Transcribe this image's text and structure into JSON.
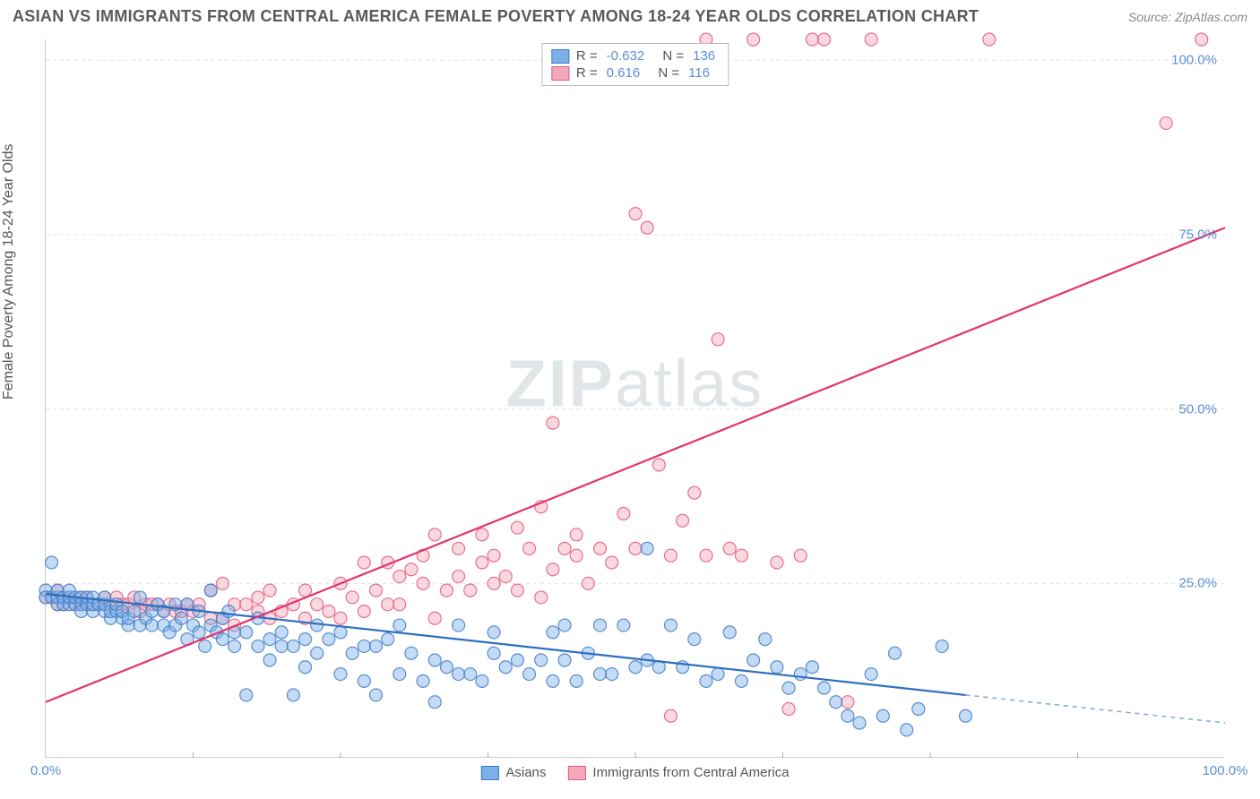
{
  "title": "ASIAN VS IMMIGRANTS FROM CENTRAL AMERICA FEMALE POVERTY AMONG 18-24 YEAR OLDS CORRELATION CHART",
  "source": "Source: ZipAtlas.com",
  "y_axis_label": "Female Poverty Among 18-24 Year Olds",
  "watermark": "ZIPatlas",
  "chart": {
    "type": "scatter",
    "background_color": "#ffffff",
    "grid_color": "#e3e3e3",
    "axis_color": "#cccccc",
    "xlim": [
      0,
      100
    ],
    "ylim": [
      0,
      103
    ],
    "y_ticks": [
      25,
      50,
      75,
      100
    ],
    "y_tick_labels": [
      "25.0%",
      "50.0%",
      "75.0%",
      "100.0%"
    ],
    "x_ticks": [
      0,
      100
    ],
    "x_tick_labels": [
      "0.0%",
      "100.0%"
    ],
    "x_minor_ticks": [
      12.5,
      25,
      37.5,
      50,
      62.5,
      75,
      87.5
    ],
    "marker_radius": 7,
    "marker_opacity": 0.45,
    "marker_stroke_opacity": 0.85,
    "title_fontsize": 18,
    "label_fontsize": 16,
    "tick_fontsize": 15,
    "tick_color": "#5a8fd6"
  },
  "series": [
    {
      "name": "Asians",
      "fill": "#7db0e8",
      "stroke": "#3f7cc4",
      "R": "-0.632",
      "N": "136",
      "trend": {
        "x1": 0,
        "y1": 23.5,
        "x2": 78,
        "y2": 9.0,
        "dash_x2": 100,
        "dash_y2": 5.0,
        "color": "#2d6fbf",
        "width": 2.2
      },
      "points": [
        [
          0,
          24
        ],
        [
          0,
          23
        ],
        [
          0.5,
          23
        ],
        [
          0.5,
          28
        ],
        [
          1,
          22
        ],
        [
          1,
          23
        ],
        [
          1,
          24
        ],
        [
          1.5,
          22
        ],
        [
          1.5,
          23
        ],
        [
          2,
          22
        ],
        [
          2,
          23
        ],
        [
          2,
          24
        ],
        [
          2.5,
          22
        ],
        [
          2.5,
          23
        ],
        [
          3,
          22
        ],
        [
          3,
          21
        ],
        [
          3,
          23
        ],
        [
          3.5,
          22
        ],
        [
          3.5,
          23
        ],
        [
          4,
          21
        ],
        [
          4,
          22
        ],
        [
          4,
          23
        ],
        [
          4.5,
          22
        ],
        [
          5,
          21
        ],
        [
          5,
          22
        ],
        [
          5,
          23
        ],
        [
          5.5,
          20
        ],
        [
          5.5,
          21
        ],
        [
          6,
          21
        ],
        [
          6,
          22
        ],
        [
          6.5,
          20
        ],
        [
          6.5,
          21
        ],
        [
          7,
          19
        ],
        [
          7,
          20
        ],
        [
          7.5,
          21
        ],
        [
          8,
          19
        ],
        [
          8,
          23
        ],
        [
          8.5,
          20
        ],
        [
          9,
          19
        ],
        [
          9,
          21
        ],
        [
          9.5,
          22
        ],
        [
          10,
          19
        ],
        [
          10,
          21
        ],
        [
          10.5,
          18
        ],
        [
          11,
          19
        ],
        [
          11,
          22
        ],
        [
          11.5,
          20
        ],
        [
          12,
          17
        ],
        [
          12,
          22
        ],
        [
          12.5,
          19
        ],
        [
          13,
          18
        ],
        [
          13,
          21
        ],
        [
          13.5,
          16
        ],
        [
          14,
          19
        ],
        [
          14,
          24
        ],
        [
          14.5,
          18
        ],
        [
          15,
          17
        ],
        [
          15,
          20
        ],
        [
          15.5,
          21
        ],
        [
          16,
          18
        ],
        [
          16,
          16
        ],
        [
          17,
          18
        ],
        [
          17,
          9
        ],
        [
          18,
          16
        ],
        [
          18,
          20
        ],
        [
          19,
          17
        ],
        [
          19,
          14
        ],
        [
          20,
          18
        ],
        [
          20,
          16
        ],
        [
          21,
          16
        ],
        [
          21,
          9
        ],
        [
          22,
          17
        ],
        [
          22,
          13
        ],
        [
          23,
          15
        ],
        [
          23,
          19
        ],
        [
          24,
          17
        ],
        [
          25,
          12
        ],
        [
          25,
          18
        ],
        [
          26,
          15
        ],
        [
          27,
          16
        ],
        [
          27,
          11
        ],
        [
          28,
          16
        ],
        [
          28,
          9
        ],
        [
          29,
          17
        ],
        [
          30,
          12
        ],
        [
          30,
          19
        ],
        [
          31,
          15
        ],
        [
          32,
          11
        ],
        [
          33,
          14
        ],
        [
          33,
          8
        ],
        [
          34,
          13
        ],
        [
          35,
          12
        ],
        [
          35,
          19
        ],
        [
          36,
          12
        ],
        [
          37,
          11
        ],
        [
          38,
          18
        ],
        [
          38,
          15
        ],
        [
          39,
          13
        ],
        [
          40,
          14
        ],
        [
          41,
          12
        ],
        [
          42,
          14
        ],
        [
          43,
          11
        ],
        [
          43,
          18
        ],
        [
          44,
          14
        ],
        [
          44,
          19
        ],
        [
          45,
          11
        ],
        [
          46,
          15
        ],
        [
          47,
          12
        ],
        [
          47,
          19
        ],
        [
          48,
          12
        ],
        [
          49,
          19
        ],
        [
          50,
          13
        ],
        [
          51,
          30
        ],
        [
          51,
          14
        ],
        [
          52,
          13
        ],
        [
          53,
          19
        ],
        [
          54,
          13
        ],
        [
          55,
          17
        ],
        [
          56,
          11
        ],
        [
          57,
          12
        ],
        [
          58,
          18
        ],
        [
          59,
          11
        ],
        [
          60,
          14
        ],
        [
          61,
          17
        ],
        [
          62,
          13
        ],
        [
          63,
          10
        ],
        [
          64,
          12
        ],
        [
          65,
          13
        ],
        [
          66,
          10
        ],
        [
          67,
          8
        ],
        [
          68,
          6
        ],
        [
          69,
          5
        ],
        [
          70,
          12
        ],
        [
          71,
          6
        ],
        [
          72,
          15
        ],
        [
          73,
          4
        ],
        [
          74,
          7
        ],
        [
          76,
          16
        ],
        [
          78,
          6
        ]
      ]
    },
    {
      "name": "Immigrants from Central America",
      "fill": "#f4a9bb",
      "stroke": "#e05a7d",
      "R": "0.616",
      "N": "116",
      "trend": {
        "x1": 0,
        "y1": 8.0,
        "x2": 100,
        "y2": 76.0,
        "color": "#e6336a",
        "width": 2.2
      },
      "points": [
        [
          0,
          23
        ],
        [
          0.5,
          23
        ],
        [
          1,
          22
        ],
        [
          1,
          24
        ],
        [
          1.5,
          22
        ],
        [
          2,
          23
        ],
        [
          2.5,
          22
        ],
        [
          3,
          23
        ],
        [
          3,
          22
        ],
        [
          3.5,
          23
        ],
        [
          4,
          22
        ],
        [
          4.5,
          22
        ],
        [
          5,
          23
        ],
        [
          5.5,
          22
        ],
        [
          6,
          23
        ],
        [
          6.5,
          22
        ],
        [
          7,
          22
        ],
        [
          7.5,
          23
        ],
        [
          8,
          21
        ],
        [
          8.5,
          22
        ],
        [
          9,
          22
        ],
        [
          9.5,
          22
        ],
        [
          10,
          21
        ],
        [
          10.5,
          22
        ],
        [
          11,
          21
        ],
        [
          11.5,
          21
        ],
        [
          12,
          22
        ],
        [
          12.5,
          21
        ],
        [
          13,
          22
        ],
        [
          14,
          20
        ],
        [
          14,
          24
        ],
        [
          15,
          20
        ],
        [
          15,
          25
        ],
        [
          16,
          22
        ],
        [
          16,
          19
        ],
        [
          17,
          22
        ],
        [
          18,
          21
        ],
        [
          18,
          23
        ],
        [
          19,
          20
        ],
        [
          19,
          24
        ],
        [
          20,
          21
        ],
        [
          21,
          22
        ],
        [
          22,
          24
        ],
        [
          22,
          20
        ],
        [
          23,
          22
        ],
        [
          24,
          21
        ],
        [
          25,
          25
        ],
        [
          25,
          20
        ],
        [
          26,
          23
        ],
        [
          27,
          28
        ],
        [
          27,
          21
        ],
        [
          28,
          24
        ],
        [
          29,
          22
        ],
        [
          29,
          28
        ],
        [
          30,
          26
        ],
        [
          30,
          22
        ],
        [
          31,
          27
        ],
        [
          32,
          25
        ],
        [
          32,
          29
        ],
        [
          33,
          32
        ],
        [
          33,
          20
        ],
        [
          34,
          24
        ],
        [
          35,
          26
        ],
        [
          35,
          30
        ],
        [
          36,
          24
        ],
        [
          37,
          28
        ],
        [
          37,
          32
        ],
        [
          38,
          29
        ],
        [
          38,
          25
        ],
        [
          39,
          26
        ],
        [
          40,
          33
        ],
        [
          40,
          24
        ],
        [
          41,
          30
        ],
        [
          42,
          23
        ],
        [
          42,
          36
        ],
        [
          43,
          48
        ],
        [
          43,
          27
        ],
        [
          44,
          30
        ],
        [
          45,
          29
        ],
        [
          45,
          32
        ],
        [
          46,
          25
        ],
        [
          47,
          30
        ],
        [
          48,
          28
        ],
        [
          49,
          35
        ],
        [
          50,
          30
        ],
        [
          50,
          78
        ],
        [
          51,
          76
        ],
        [
          52,
          42
        ],
        [
          53,
          29
        ],
        [
          53,
          6
        ],
        [
          54,
          34
        ],
        [
          55,
          38
        ],
        [
          56,
          29
        ],
        [
          56,
          103
        ],
        [
          57,
          60
        ],
        [
          58,
          30
        ],
        [
          59,
          29
        ],
        [
          60,
          103
        ],
        [
          62,
          28
        ],
        [
          63,
          7
        ],
        [
          64,
          29
        ],
        [
          65,
          103
        ],
        [
          66,
          103
        ],
        [
          68,
          8
        ],
        [
          70,
          103
        ],
        [
          80,
          103
        ],
        [
          95,
          91
        ],
        [
          98,
          103
        ]
      ]
    }
  ],
  "stats_box": {
    "label_R": "R =",
    "label_N": "N ="
  },
  "legend": {
    "items": [
      "Asians",
      "Immigrants from Central America"
    ]
  }
}
